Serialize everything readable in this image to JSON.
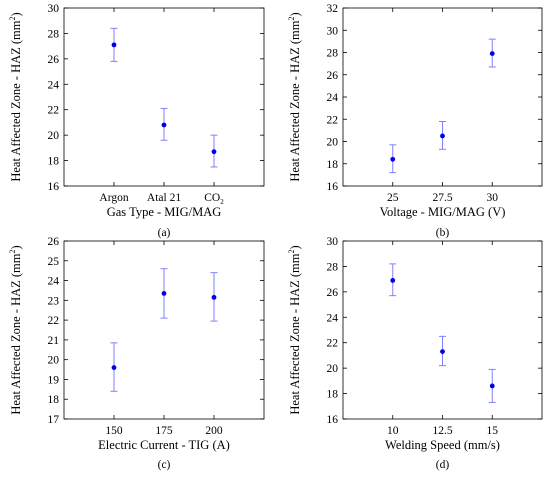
{
  "chart_data": [
    {
      "type": "scatter",
      "panel_label": "(a)",
      "xlabel": "Gas Type - MIG/MAG",
      "ylabel": "Heat Affected Zone - HAZ (mm²)",
      "categories": [
        "Argon",
        "Atal 21",
        "CO₂"
      ],
      "values": [
        27.1,
        20.8,
        18.7
      ],
      "error_low": [
        25.8,
        19.6,
        17.5
      ],
      "error_high": [
        28.4,
        22.1,
        20.0
      ],
      "ylim": [
        16,
        30
      ],
      "yticks": [
        "16",
        "18",
        "20",
        "22",
        "24",
        "26",
        "28",
        "30"
      ],
      "grid": false
    },
    {
      "type": "scatter",
      "panel_label": "(b)",
      "xlabel": "Voltage - MIG/MAG (V)",
      "ylabel": "Heat Affected Zone - HAZ (mm²)",
      "categories": [
        "25",
        "27.5",
        "30"
      ],
      "values": [
        18.4,
        20.5,
        27.9
      ],
      "error_low": [
        17.2,
        19.3,
        26.7
      ],
      "error_high": [
        19.7,
        21.8,
        29.2
      ],
      "ylim": [
        16,
        32
      ],
      "yticks": [
        "16",
        "18",
        "20",
        "22",
        "24",
        "26",
        "28",
        "30",
        "32"
      ],
      "grid": false
    },
    {
      "type": "scatter",
      "panel_label": "(c)",
      "xlabel": "Electric Current - TIG (A)",
      "ylabel": "Heat Affected Zone - HAZ (mm²)",
      "categories": [
        "150",
        "175",
        "200"
      ],
      "values": [
        19.6,
        23.35,
        23.15
      ],
      "error_low": [
        18.4,
        22.1,
        21.95
      ],
      "error_high": [
        20.85,
        24.6,
        24.4
      ],
      "ylim": [
        17,
        26
      ],
      "yticks": [
        "17",
        "18",
        "19",
        "20",
        "21",
        "22",
        "23",
        "24",
        "25",
        "26"
      ],
      "grid": false
    },
    {
      "type": "scatter",
      "panel_label": "(d)",
      "xlabel": "Welding Speed (mm/s)",
      "ylabel": "Heat Affected Zone - HAZ (mm²)",
      "categories": [
        "10",
        "12.5",
        "15"
      ],
      "values": [
        26.9,
        21.3,
        18.6
      ],
      "error_low": [
        25.7,
        20.2,
        17.3
      ],
      "error_high": [
        28.2,
        22.5,
        19.9
      ],
      "ylim": [
        16,
        30
      ],
      "yticks": [
        "16",
        "18",
        "20",
        "22",
        "24",
        "26",
        "28",
        "30"
      ],
      "grid": false
    }
  ]
}
